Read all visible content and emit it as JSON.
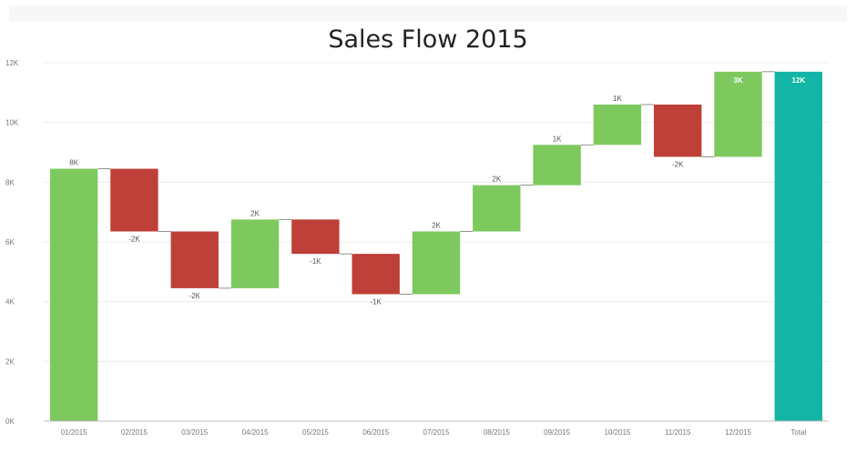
{
  "chart_data": {
    "type": "bar",
    "subtype": "waterfall",
    "title": "Sales Flow 2015",
    "xlabel": "",
    "ylabel": "",
    "ylim": [
      0,
      12000
    ],
    "y_ticks": [
      "0K",
      "2K",
      "4K",
      "6K",
      "8K",
      "10K",
      "12K"
    ],
    "y_tick_values": [
      0,
      2000,
      4000,
      6000,
      8000,
      10000,
      12000
    ],
    "grid": true,
    "legend": "none",
    "categories": [
      "01/2015",
      "02/2015",
      "03/2015",
      "04/2015",
      "05/2015",
      "06/2015",
      "07/2015",
      "08/2015",
      "09/2015",
      "10/2015",
      "11/2015",
      "12/2015",
      "Total"
    ],
    "values": [
      8450,
      -2100,
      -1900,
      2300,
      -1150,
      -1350,
      2100,
      1550,
      1350,
      1350,
      -1750,
      2850,
      11700
    ],
    "kinds": [
      "increase",
      "decrease",
      "decrease",
      "increase",
      "decrease",
      "decrease",
      "increase",
      "increase",
      "increase",
      "increase",
      "decrease",
      "increase",
      "total"
    ],
    "data_labels": [
      "8K",
      "-2K",
      "-2K",
      "2K",
      "-1K",
      "-1K",
      "2K",
      "2K",
      "1K",
      "1K",
      "-2K",
      "3K",
      "12K"
    ],
    "colors": {
      "increase": "#7dc95e",
      "decrease": "#bf4038",
      "total": "#12b5a6",
      "connector": "#777777",
      "gridline": "#ececec",
      "axis": "#bdbdbd"
    }
  }
}
